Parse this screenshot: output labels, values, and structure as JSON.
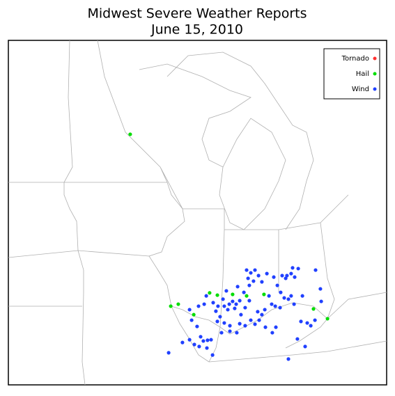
{
  "chart_data": {
    "type": "scatter",
    "title": "Midwest Severe Weather Reports",
    "subtitle": "June 15, 2010",
    "legend": "upper-right",
    "series": [
      {
        "name": "Tornado",
        "color": "#ff3030",
        "x": [],
        "y": []
      },
      {
        "name": "Hail",
        "color": "#00dd00",
        "x": [
          -92.57,
          -90.63,
          -90.27,
          -89.53,
          -88.77,
          -88.4,
          -87.67,
          -87.0,
          -86.17,
          -83.8,
          -83.13
        ],
        "y": [
          45.74,
          38.88,
          38.96,
          38.54,
          39.41,
          39.32,
          39.35,
          39.29,
          39.35,
          38.77,
          38.38
        ]
      },
      {
        "name": "Wind",
        "color": "#2040ff",
        "x": [
          -90.73,
          -90.07,
          -89.73,
          -89.5,
          -89.27,
          -89.07,
          -88.7,
          -89.2,
          -89.37,
          -89.63,
          -89.73,
          -89.3,
          -89.03,
          -88.93,
          -88.6,
          -88.37,
          -88.13,
          -87.97,
          -88.07,
          -87.83,
          -87.67,
          -87.5,
          -87.33,
          -87.57,
          -87.9,
          -88.27,
          -88.4,
          -88.07,
          -87.8,
          -87.33,
          -87.27,
          -87.07,
          -86.87,
          -87.13,
          -86.93,
          -86.87,
          -86.67,
          -87.0,
          -86.8,
          -86.6,
          -86.43,
          -86.27,
          -86.03,
          -85.7,
          -85.53,
          -85.37,
          -85.2,
          -85.0,
          -84.87,
          -84.73,
          -85.13,
          -84.87,
          -84.7,
          -84.53,
          -84.8,
          -85.07,
          -85.93,
          -85.8,
          -86.13,
          -86.27,
          -86.4,
          -86.47,
          -86.6,
          -86.8,
          -87.07,
          -87.47,
          -87.8,
          -88.2,
          -88.63,
          -88.9,
          -85.77,
          -85.6,
          -83.7,
          -83.47,
          -83.43,
          -83.73,
          -84.1,
          -84.4,
          -83.93,
          -84.57,
          -85.0,
          -84.2,
          -85.63,
          -85.4,
          -86.1,
          -87.43,
          -88.47,
          -84.33,
          -88.87,
          -85.3
        ],
        "y": [
          37.02,
          37.43,
          37.54,
          37.35,
          37.27,
          37.49,
          37.54,
          37.66,
          38.07,
          38.32,
          38.74,
          38.88,
          38.96,
          39.29,
          39.02,
          38.88,
          39.16,
          39.49,
          38.88,
          38.96,
          39.07,
          38.96,
          39.1,
          38.79,
          38.74,
          38.46,
          38.27,
          38.21,
          38.1,
          38.18,
          38.54,
          38.82,
          39.1,
          39.43,
          39.99,
          39.71,
          39.88,
          40.32,
          40.21,
          40.32,
          40.1,
          39.85,
          40.18,
          40.04,
          39.71,
          39.43,
          39.21,
          39.16,
          39.29,
          38.96,
          39.99,
          40.18,
          40.04,
          40.38,
          40.41,
          40.1,
          39.29,
          38.96,
          38.74,
          38.54,
          38.32,
          38.66,
          38.16,
          38.32,
          38.1,
          37.82,
          37.88,
          37.82,
          36.93,
          37.21,
          37.82,
          38.04,
          40.32,
          39.57,
          39.07,
          38.32,
          38.21,
          38.27,
          38.1,
          37.57,
          36.77,
          37.27,
          38.88,
          38.82,
          38.04,
          39.66,
          38.68,
          39.29,
          37.52,
          40.1
        ]
      }
    ]
  }
}
